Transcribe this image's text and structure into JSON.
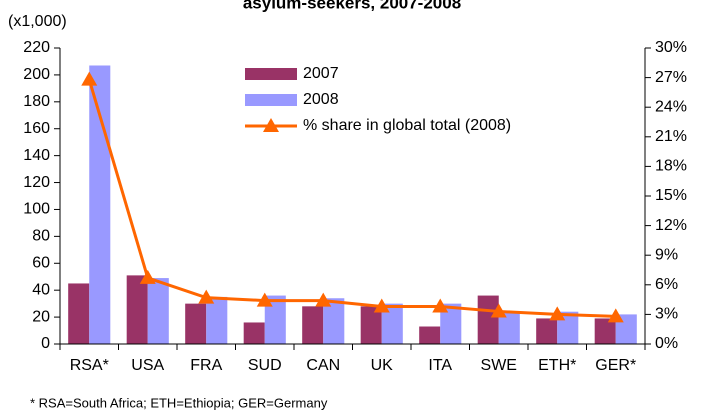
{
  "chart_data": {
    "type": "bar_line",
    "title": "asylum-seekers, 2007-2008",
    "y_label": "(x1,000)",
    "footnote": "* RSA=South Africa; ETH=Ethiopia; GER=Germany",
    "categories": [
      "RSA*",
      "USA",
      "FRA",
      "SUD",
      "CAN",
      "UK",
      "ITA",
      "SWE",
      "ETH*",
      "GER*"
    ],
    "series": [
      {
        "name": "2007",
        "color": "#993366",
        "values": [
          45,
          51,
          30,
          16,
          28,
          28,
          13,
          36,
          19,
          19
        ]
      },
      {
        "name": "2008",
        "color": "#9999ff",
        "values": [
          207,
          49,
          35,
          36,
          34,
          30,
          30,
          24,
          24,
          22
        ]
      },
      {
        "name": "% share in global total (2008)",
        "color": "#ff6600",
        "axis": "y2",
        "values": [
          26.8,
          6.7,
          4.7,
          4.4,
          4.4,
          3.8,
          3.8,
          3.3,
          3.0,
          2.8
        ]
      }
    ],
    "ylim": [
      0,
      220
    ],
    "yticks": [
      0,
      20,
      40,
      60,
      80,
      100,
      120,
      140,
      160,
      180,
      200,
      220
    ],
    "y2lim": [
      0,
      30
    ],
    "y2ticks": [
      {
        "value": 0,
        "label": "0%"
      },
      {
        "value": 3,
        "label": "3%"
      },
      {
        "value": 6,
        "label": "6%"
      },
      {
        "value": 9,
        "label": "9%"
      },
      {
        "value": 12,
        "label": "12%"
      },
      {
        "value": 15,
        "label": "15%"
      },
      {
        "value": 18,
        "label": "18%"
      },
      {
        "value": 21,
        "label": "21%"
      },
      {
        "value": 24,
        "label": "24%"
      },
      {
        "value": 27,
        "label": "27%"
      },
      {
        "value": 30,
        "label": "30%"
      }
    ]
  }
}
